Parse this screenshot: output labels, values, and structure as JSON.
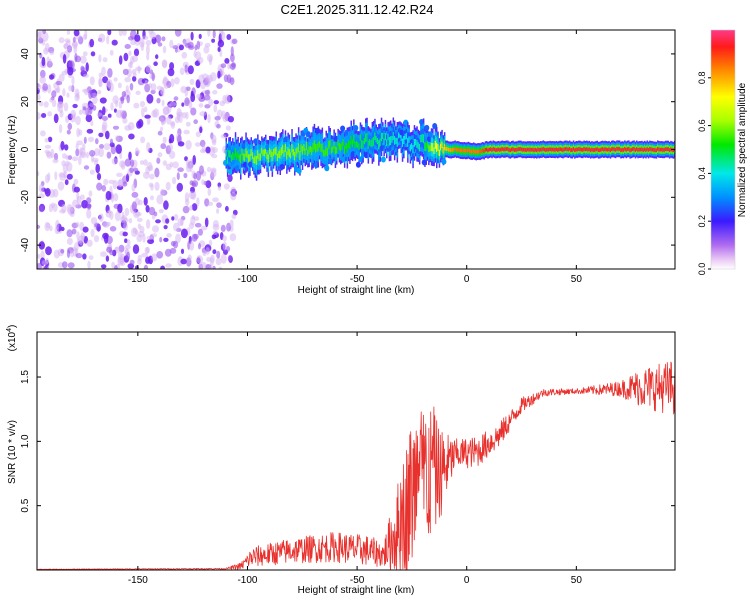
{
  "title": "C2E1.2025.311.12.42.R24",
  "chart_data": [
    {
      "type": "heatmap",
      "name": "spectrogram",
      "xlabel": "Height of straight line (km)",
      "ylabel": "Frequency (Hz)",
      "xlim": [
        -196,
        95
      ],
      "ylim": [
        -50,
        50
      ],
      "x_ticks": [
        -150,
        -100,
        -50,
        0,
        50
      ],
      "y_ticks": [
        -40,
        -20,
        0,
        20,
        40
      ],
      "x_tick_labels": [
        "-150",
        "-100",
        "-50",
        "0",
        "50"
      ],
      "y_tick_labels": [
        "-40",
        "-20",
        "0",
        "20",
        "40"
      ],
      "colorbar": {
        "label": "Normalized spectral amplitude",
        "range": [
          0.0,
          1.0
        ],
        "ticks": [
          0.0,
          0.2,
          0.4,
          0.6,
          0.8
        ],
        "tick_labels": [
          "0.0",
          "0.2",
          "0.4",
          "0.6",
          "0.8"
        ]
      },
      "noise_region": {
        "x_from": -196,
        "x_to": -110
      },
      "ridge": [
        {
          "x": -110,
          "y": -3,
          "amp": 0.45
        },
        {
          "x": -100,
          "y": -3,
          "amp": 0.6
        },
        {
          "x": -90,
          "y": -2,
          "amp": 0.6
        },
        {
          "x": -80,
          "y": -1,
          "amp": 0.6
        },
        {
          "x": -70,
          "y": 0,
          "amp": 0.55
        },
        {
          "x": -60,
          "y": 1,
          "amp": 0.55
        },
        {
          "x": -50,
          "y": 3,
          "amp": 0.5
        },
        {
          "x": -40,
          "y": 4,
          "amp": 0.45
        },
        {
          "x": -30,
          "y": 5,
          "amp": 0.4
        },
        {
          "x": -25,
          "y": 2,
          "amp": 0.4
        },
        {
          "x": -20,
          "y": 3,
          "amp": 0.45
        },
        {
          "x": -15,
          "y": 0,
          "amp": 0.7
        },
        {
          "x": -5,
          "y": 0,
          "amp": 0.85
        },
        {
          "x": 5,
          "y": -1,
          "amp": 0.85
        },
        {
          "x": 10,
          "y": 0,
          "amp": 0.95
        },
        {
          "x": 50,
          "y": 0,
          "amp": 0.95
        },
        {
          "x": 95,
          "y": 0,
          "amp": 0.95
        }
      ]
    },
    {
      "type": "line",
      "name": "snr",
      "xlabel": "Height of straight line (km)",
      "ylabel": "SNR (10 * v/v)",
      "scale_label": "(x10",
      "scale_exp": "4",
      "scale_close": ")",
      "xlim": [
        -196,
        95
      ],
      "ylim": [
        0,
        1.85
      ],
      "x_ticks": [
        -150,
        -100,
        -50,
        0,
        50
      ],
      "y_ticks": [
        0.5,
        1.0,
        1.5
      ],
      "x_tick_labels": [
        "-150",
        "-100",
        "-50",
        "0",
        "50"
      ],
      "y_tick_labels": [
        "0.5",
        "1.0",
        "1.5"
      ],
      "color": "#e8302c",
      "envelope": [
        {
          "x": -196,
          "base": 0.005,
          "jitter": 0.002
        },
        {
          "x": -110,
          "base": 0.01,
          "jitter": 0.004
        },
        {
          "x": -103,
          "base": 0.03,
          "jitter": 0.03
        },
        {
          "x": -98,
          "base": 0.1,
          "jitter": 0.08
        },
        {
          "x": -80,
          "base": 0.15,
          "jitter": 0.1
        },
        {
          "x": -60,
          "base": 0.18,
          "jitter": 0.12
        },
        {
          "x": -45,
          "base": 0.15,
          "jitter": 0.12
        },
        {
          "x": -38,
          "base": 0.12,
          "jitter": 0.1
        },
        {
          "x": -32,
          "base": 0.3,
          "jitter": 0.35
        },
        {
          "x": -25,
          "base": 0.6,
          "jitter": 0.6
        },
        {
          "x": -18,
          "base": 0.75,
          "jitter": 0.6
        },
        {
          "x": -12,
          "base": 0.75,
          "jitter": 0.35
        },
        {
          "x": -5,
          "base": 0.9,
          "jitter": 0.12
        },
        {
          "x": 5,
          "base": 0.92,
          "jitter": 0.12
        },
        {
          "x": 15,
          "base": 1.05,
          "jitter": 0.1
        },
        {
          "x": 25,
          "base": 1.28,
          "jitter": 0.06
        },
        {
          "x": 35,
          "base": 1.38,
          "jitter": 0.03
        },
        {
          "x": 50,
          "base": 1.39,
          "jitter": 0.02
        },
        {
          "x": 70,
          "base": 1.41,
          "jitter": 0.06
        },
        {
          "x": 80,
          "base": 1.42,
          "jitter": 0.16
        },
        {
          "x": 95,
          "base": 1.42,
          "jitter": 0.22
        }
      ]
    }
  ]
}
